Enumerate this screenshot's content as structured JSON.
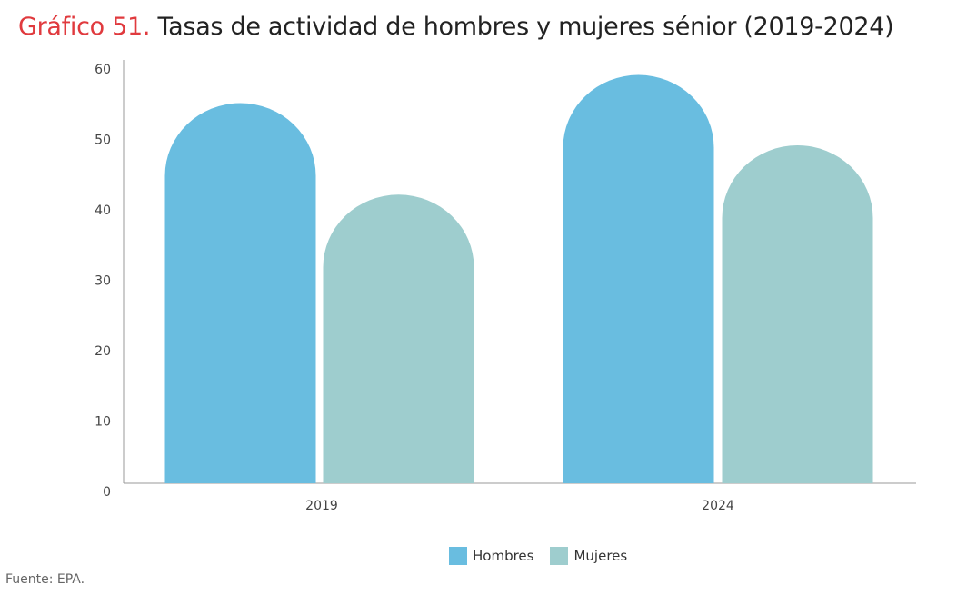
{
  "title_number": "Gráfico 51.",
  "title_text": " Tasas de actividad de hombres y mujeres sénior (2019-2024)",
  "source": "Fuente: EPA.",
  "chart_data": {
    "type": "bar",
    "categories": [
      "2019",
      "2024"
    ],
    "series": [
      {
        "name": "Hombres",
        "values": [
          54,
          58
        ],
        "color": "#69bde0"
      },
      {
        "name": "Mujeres",
        "values": [
          41,
          48
        ],
        "color": "#9ecdce"
      }
    ],
    "yticks": [
      "0",
      "10",
      "20",
      "30",
      "40",
      "50",
      "60"
    ],
    "ylim": [
      0,
      60
    ],
    "grid": false,
    "legend": "bottom"
  }
}
